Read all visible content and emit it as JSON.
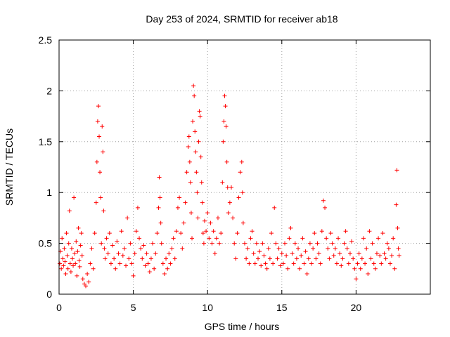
{
  "chart_data": {
    "type": "scatter",
    "title": "Day 253 of 2024, SRMTID for receiver ab18",
    "xlabel": "GPS time / hours",
    "ylabel": "SRMTID / TECUs",
    "xlim": [
      0,
      25
    ],
    "ylim": [
      0,
      2.5
    ],
    "x_ticks": [
      0,
      5,
      10,
      15,
      20
    ],
    "x_tick_labels": [
      "0",
      "5",
      "10",
      "15",
      "20"
    ],
    "y_ticks": [
      0,
      0.5,
      1,
      1.5,
      2,
      2.5
    ],
    "y_tick_labels": [
      "0",
      "0.5",
      "1",
      "1.5",
      "2",
      "2.5"
    ],
    "grid": true,
    "marker": "+",
    "color": "#ff0000",
    "series": [
      {
        "name": "SRMTID",
        "points": [
          [
            0.05,
            0.3
          ],
          [
            0.1,
            0.42
          ],
          [
            0.15,
            0.25
          ],
          [
            0.2,
            0.55
          ],
          [
            0.25,
            0.35
          ],
          [
            0.3,
            0.28
          ],
          [
            0.35,
            0.45
          ],
          [
            0.4,
            0.32
          ],
          [
            0.45,
            0.2
          ],
          [
            0.5,
            0.6
          ],
          [
            0.55,
            0.38
          ],
          [
            0.6,
            0.25
          ],
          [
            0.65,
            0.5
          ],
          [
            0.7,
            0.82
          ],
          [
            0.75,
            0.3
          ],
          [
            0.8,
            0.22
          ],
          [
            0.85,
            0.45
          ],
          [
            0.9,
            0.35
          ],
          [
            0.95,
            0.28
          ],
          [
            1.0,
            0.95
          ],
          [
            1.05,
            0.4
          ],
          [
            1.1,
            0.3
          ],
          [
            1.15,
            0.52
          ],
          [
            1.2,
            0.18
          ],
          [
            1.25,
            0.42
          ],
          [
            1.3,
            0.65
          ],
          [
            1.35,
            0.33
          ],
          [
            1.4,
            0.27
          ],
          [
            1.45,
            0.48
          ],
          [
            1.5,
            0.6
          ],
          [
            1.55,
            0.38
          ],
          [
            1.6,
            0.15
          ],
          [
            1.7,
            0.1
          ],
          [
            1.8,
            0.08
          ],
          [
            1.9,
            0.2
          ],
          [
            2.0,
            0.12
          ],
          [
            2.1,
            0.3
          ],
          [
            2.2,
            0.45
          ],
          [
            2.3,
            0.25
          ],
          [
            2.4,
            0.6
          ],
          [
            2.5,
            0.9
          ],
          [
            2.55,
            1.3
          ],
          [
            2.6,
            1.7
          ],
          [
            2.65,
            1.85
          ],
          [
            2.7,
            1.55
          ],
          [
            2.75,
            1.2
          ],
          [
            2.8,
            0.95
          ],
          [
            2.85,
            0.5
          ],
          [
            2.9,
            1.65
          ],
          [
            2.95,
            1.4
          ],
          [
            3.0,
            0.82
          ],
          [
            3.05,
            0.45
          ],
          [
            3.1,
            0.35
          ],
          [
            3.2,
            0.55
          ],
          [
            3.3,
            0.4
          ],
          [
            3.4,
            0.6
          ],
          [
            3.5,
            0.3
          ],
          [
            3.6,
            0.48
          ],
          [
            3.7,
            0.35
          ],
          [
            3.8,
            0.25
          ],
          [
            3.9,
            0.52
          ],
          [
            4.0,
            0.4
          ],
          [
            4.1,
            0.3
          ],
          [
            4.2,
            0.62
          ],
          [
            4.3,
            0.38
          ],
          [
            4.4,
            0.45
          ],
          [
            4.5,
            0.28
          ],
          [
            4.6,
            0.75
          ],
          [
            4.7,
            0.35
          ],
          [
            4.8,
            0.5
          ],
          [
            4.9,
            0.3
          ],
          [
            5.0,
            0.18
          ],
          [
            5.1,
            0.4
          ],
          [
            5.2,
            0.62
          ],
          [
            5.3,
            0.85
          ],
          [
            5.4,
            0.55
          ],
          [
            5.5,
            0.45
          ],
          [
            5.6,
            0.35
          ],
          [
            5.7,
            0.48
          ],
          [
            5.8,
            0.28
          ],
          [
            5.9,
            0.4
          ],
          [
            6.0,
            0.3
          ],
          [
            6.1,
            0.22
          ],
          [
            6.2,
            0.35
          ],
          [
            6.3,
            0.5
          ],
          [
            6.4,
            0.25
          ],
          [
            6.5,
            0.4
          ],
          [
            6.6,
            0.6
          ],
          [
            6.7,
            0.85
          ],
          [
            6.75,
            1.15
          ],
          [
            6.8,
            0.95
          ],
          [
            6.85,
            0.7
          ],
          [
            6.9,
            0.5
          ],
          [
            7.0,
            0.3
          ],
          [
            7.1,
            0.2
          ],
          [
            7.2,
            0.35
          ],
          [
            7.3,
            0.25
          ],
          [
            7.4,
            0.4
          ],
          [
            7.5,
            0.3
          ],
          [
            7.6,
            0.45
          ],
          [
            7.7,
            0.55
          ],
          [
            7.8,
            0.35
          ],
          [
            7.9,
            0.62
          ],
          [
            8.0,
            0.85
          ],
          [
            8.1,
            0.95
          ],
          [
            8.2,
            0.6
          ],
          [
            8.3,
            0.45
          ],
          [
            8.4,
            0.7
          ],
          [
            8.5,
            0.9
          ],
          [
            8.6,
            1.2
          ],
          [
            8.7,
            1.45
          ],
          [
            8.75,
            1.55
          ],
          [
            8.8,
            1.3
          ],
          [
            8.85,
            1.1
          ],
          [
            8.9,
            0.8
          ],
          [
            8.95,
            0.55
          ],
          [
            9.0,
            1.7
          ],
          [
            9.05,
            2.05
          ],
          [
            9.1,
            1.95
          ],
          [
            9.15,
            1.6
          ],
          [
            9.2,
            1.4
          ],
          [
            9.25,
            1.2
          ],
          [
            9.3,
            1.0
          ],
          [
            9.35,
            0.75
          ],
          [
            9.4,
            1.5
          ],
          [
            9.45,
            1.8
          ],
          [
            9.5,
            1.75
          ],
          [
            9.55,
            1.35
          ],
          [
            9.6,
            1.1
          ],
          [
            9.65,
            0.9
          ],
          [
            9.7,
            0.6
          ],
          [
            9.75,
            0.5
          ],
          [
            9.8,
            0.72
          ],
          [
            9.9,
            0.62
          ],
          [
            10.0,
            0.8
          ],
          [
            10.1,
            0.55
          ],
          [
            10.2,
            0.7
          ],
          [
            10.3,
            0.5
          ],
          [
            10.4,
            0.62
          ],
          [
            10.5,
            0.4
          ],
          [
            10.6,
            0.55
          ],
          [
            10.7,
            0.75
          ],
          [
            10.8,
            0.5
          ],
          [
            10.9,
            0.6
          ],
          [
            11.0,
            1.1
          ],
          [
            11.05,
            1.5
          ],
          [
            11.1,
            1.7
          ],
          [
            11.15,
            1.95
          ],
          [
            11.2,
            1.85
          ],
          [
            11.25,
            1.65
          ],
          [
            11.3,
            1.3
          ],
          [
            11.35,
            1.05
          ],
          [
            11.4,
            0.8
          ],
          [
            11.5,
            0.9
          ],
          [
            11.6,
            1.05
          ],
          [
            11.7,
            0.75
          ],
          [
            11.8,
            0.5
          ],
          [
            11.9,
            0.35
          ],
          [
            12.0,
            0.6
          ],
          [
            12.1,
            0.95
          ],
          [
            12.2,
            1.2
          ],
          [
            12.3,
            1.3
          ],
          [
            12.35,
            1.0
          ],
          [
            12.4,
            0.7
          ],
          [
            12.5,
            0.5
          ],
          [
            12.6,
            0.35
          ],
          [
            12.7,
            0.45
          ],
          [
            12.8,
            0.3
          ],
          [
            12.9,
            0.55
          ],
          [
            13.0,
            0.62
          ],
          [
            13.1,
            0.4
          ],
          [
            13.2,
            0.3
          ],
          [
            13.3,
            0.5
          ],
          [
            13.4,
            0.35
          ],
          [
            13.5,
            0.42
          ],
          [
            13.6,
            0.28
          ],
          [
            13.7,
            0.5
          ],
          [
            13.8,
            0.38
          ],
          [
            13.9,
            0.3
          ],
          [
            14.0,
            0.25
          ],
          [
            14.1,
            0.45
          ],
          [
            14.2,
            0.35
          ],
          [
            14.3,
            0.6
          ],
          [
            14.4,
            0.3
          ],
          [
            14.5,
            0.85
          ],
          [
            14.6,
            0.5
          ],
          [
            14.7,
            0.35
          ],
          [
            14.8,
            0.45
          ],
          [
            14.9,
            0.28
          ],
          [
            15.0,
            0.4
          ],
          [
            15.1,
            0.3
          ],
          [
            15.2,
            0.5
          ],
          [
            15.3,
            0.38
          ],
          [
            15.4,
            0.25
          ],
          [
            15.5,
            0.55
          ],
          [
            15.6,
            0.65
          ],
          [
            15.7,
            0.4
          ],
          [
            15.8,
            0.3
          ],
          [
            15.9,
            0.5
          ],
          [
            16.0,
            0.35
          ],
          [
            16.1,
            0.45
          ],
          [
            16.2,
            0.25
          ],
          [
            16.3,
            0.38
          ],
          [
            16.4,
            0.55
          ],
          [
            16.5,
            0.3
          ],
          [
            16.6,
            0.42
          ],
          [
            16.7,
            0.2
          ],
          [
            16.8,
            0.35
          ],
          [
            16.9,
            0.5
          ],
          [
            17.0,
            0.3
          ],
          [
            17.1,
            0.45
          ],
          [
            17.2,
            0.6
          ],
          [
            17.3,
            0.35
          ],
          [
            17.4,
            0.5
          ],
          [
            17.5,
            0.4
          ],
          [
            17.6,
            0.3
          ],
          [
            17.7,
            0.62
          ],
          [
            17.8,
            0.92
          ],
          [
            17.9,
            0.85
          ],
          [
            18.0,
            0.55
          ],
          [
            18.1,
            0.45
          ],
          [
            18.2,
            0.35
          ],
          [
            18.3,
            0.6
          ],
          [
            18.4,
            0.5
          ],
          [
            18.5,
            0.38
          ],
          [
            18.6,
            0.45
          ],
          [
            18.7,
            0.3
          ],
          [
            18.8,
            0.55
          ],
          [
            18.9,
            0.4
          ],
          [
            19.0,
            0.28
          ],
          [
            19.1,
            0.35
          ],
          [
            19.2,
            0.5
          ],
          [
            19.3,
            0.62
          ],
          [
            19.4,
            0.45
          ],
          [
            19.5,
            0.3
          ],
          [
            19.6,
            0.4
          ],
          [
            19.7,
            0.52
          ],
          [
            19.8,
            0.35
          ],
          [
            19.9,
            0.25
          ],
          [
            20.0,
            0.15
          ],
          [
            20.1,
            0.3
          ],
          [
            20.2,
            0.4
          ],
          [
            20.3,
            0.25
          ],
          [
            20.4,
            0.35
          ],
          [
            20.5,
            0.55
          ],
          [
            20.6,
            0.3
          ],
          [
            20.7,
            0.45
          ],
          [
            20.8,
            0.2
          ],
          [
            20.9,
            0.62
          ],
          [
            21.0,
            0.35
          ],
          [
            21.1,
            0.5
          ],
          [
            21.2,
            0.3
          ],
          [
            21.3,
            0.25
          ],
          [
            21.4,
            0.4
          ],
          [
            21.5,
            0.55
          ],
          [
            21.6,
            0.38
          ],
          [
            21.7,
            0.3
          ],
          [
            21.8,
            0.6
          ],
          [
            21.9,
            0.4
          ],
          [
            22.0,
            0.35
          ],
          [
            22.1,
            0.5
          ],
          [
            22.2,
            0.45
          ],
          [
            22.3,
            0.3
          ],
          [
            22.4,
            0.38
          ],
          [
            22.5,
            0.55
          ],
          [
            22.6,
            0.25
          ],
          [
            22.7,
            0.88
          ],
          [
            22.75,
            1.22
          ],
          [
            22.8,
            0.65
          ],
          [
            22.85,
            0.45
          ],
          [
            22.9,
            0.38
          ]
        ]
      }
    ]
  }
}
